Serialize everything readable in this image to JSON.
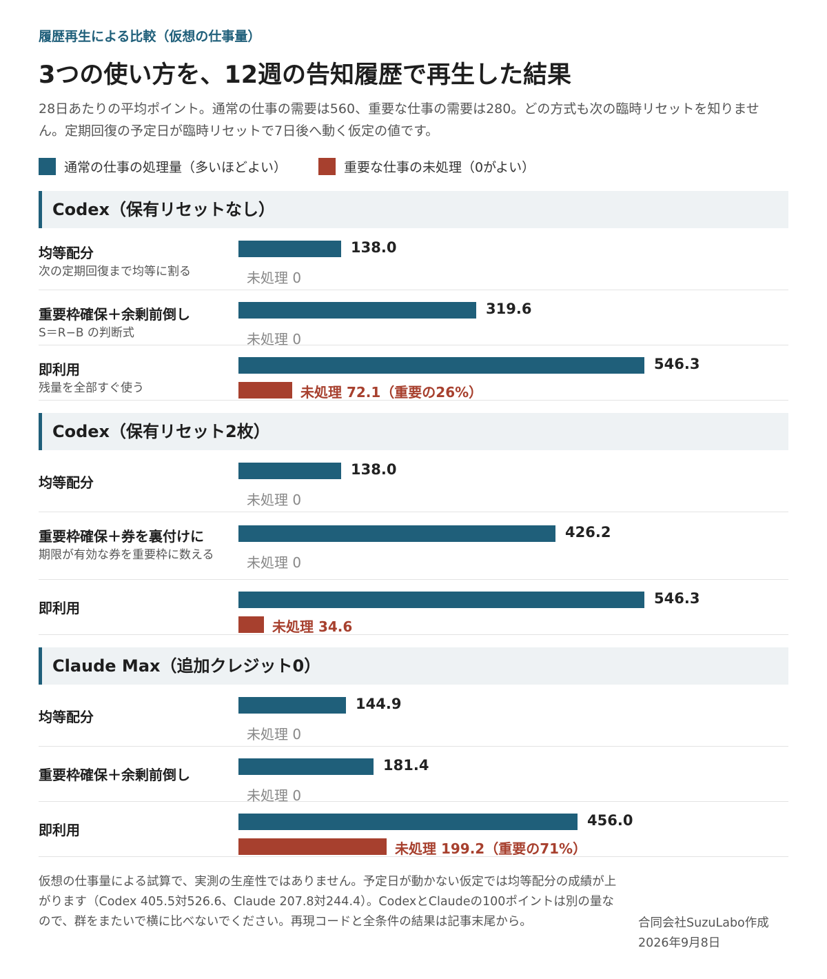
{
  "kicker": "履歴再生による比較（仮想の仕事量）",
  "title": "3つの使い方を、12週の告知履歴で再生した結果",
  "subtitle": "28日あたりの平均ポイント。通常の仕事の需要は560、重要な仕事の需要は280。どの方式も次の臨時リセットを知りません。定期回復の予定日が臨時リセットで7日後へ動く仮定の値です。",
  "legend": [
    {
      "label": "通常の仕事の処理量（多いほどよい）",
      "color": "#1f5f7a"
    },
    {
      "label": "重要な仕事の未処理（0がよい）",
      "color": "#a7402e"
    }
  ],
  "chart_data": {
    "type": "bar",
    "orientation": "horizontal",
    "series": [
      {
        "name": "通常の仕事の処理量（多いほどよい）",
        "color": "#1f5f7a"
      },
      {
        "name": "重要な仕事の未処理（0がよい）",
        "color": "#a7402e"
      }
    ],
    "groups": [
      {
        "title": "Codex（保有リセットなし）",
        "rows": [
          {
            "name": "均等配分",
            "desc": "次の定期回復まで均等に割る",
            "processed": 138.0,
            "processed_label": "138.0",
            "unprocessed": 0,
            "unprocessed_label": "未処理 0"
          },
          {
            "name": "重要枠確保＋余剰前倒し",
            "desc": "S＝R−B の判断式",
            "processed": 319.6,
            "processed_label": "319.6",
            "unprocessed": 0,
            "unprocessed_label": "未処理 0"
          },
          {
            "name": "即利用",
            "desc": "残量を全部すぐ使う",
            "processed": 546.3,
            "processed_label": "546.3",
            "unprocessed": 72.1,
            "unprocessed_label": "未処理 72.1（重要の26%）"
          }
        ]
      },
      {
        "title": "Codex（保有リセット2枚）",
        "rows": [
          {
            "name": "均等配分",
            "desc": "",
            "processed": 138.0,
            "processed_label": "138.0",
            "unprocessed": 0,
            "unprocessed_label": "未処理 0"
          },
          {
            "name": "重要枠確保＋券を裏付けに",
            "desc": "期限が有効な券を重要枠に数える",
            "processed": 426.2,
            "processed_label": "426.2",
            "unprocessed": 0,
            "unprocessed_label": "未処理 0"
          },
          {
            "name": "即利用",
            "desc": "",
            "processed": 546.3,
            "processed_label": "546.3",
            "unprocessed": 34.6,
            "unprocessed_label": "未処理 34.6"
          }
        ]
      },
      {
        "title": "Claude Max（追加クレジット0）",
        "rows": [
          {
            "name": "均等配分",
            "desc": "",
            "processed": 144.9,
            "processed_label": "144.9",
            "unprocessed": 0,
            "unprocessed_label": "未処理 0"
          },
          {
            "name": "重要枠確保＋余剰前倒し",
            "desc": "",
            "processed": 181.4,
            "processed_label": "181.4",
            "unprocessed": 0,
            "unprocessed_label": "未処理 0"
          },
          {
            "name": "即利用",
            "desc": "",
            "processed": 456.0,
            "processed_label": "456.0",
            "unprocessed": 199.2,
            "unprocessed_label": "未処理 199.2（重要の71%）"
          }
        ]
      }
    ]
  },
  "footnote": "仮想の仕事量による試算で、実測の生産性ではありません。予定日が動かない仮定では均等配分の成績が上がります（Codex 405.5対526.6、Claude 207.8対244.4）。CodexとClaudeの100ポイントは別の量なので、群をまたいで横に比べないでください。再現コードと全条件の結果は記事末尾から。",
  "credit": {
    "org": "合同会社SuzuLabo作成",
    "date": "2026年9月8日"
  }
}
